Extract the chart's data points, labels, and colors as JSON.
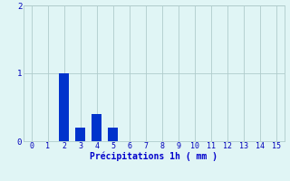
{
  "categories": [
    0,
    1,
    2,
    3,
    4,
    5,
    6,
    7,
    8,
    9,
    10,
    11,
    12,
    13,
    14,
    15
  ],
  "values": [
    0,
    0,
    1.0,
    0.2,
    0.4,
    0.2,
    0,
    0,
    0,
    0,
    0,
    0,
    0,
    0,
    0,
    0
  ],
  "bar_color": "#0033cc",
  "background_color": "#e0f5f5",
  "grid_color": "#b0cccc",
  "xlabel": "Précipitations 1h ( mm )",
  "xlabel_color": "#0000cc",
  "tick_color": "#0000bb",
  "ylim": [
    0,
    2
  ],
  "yticks": [
    0,
    1,
    2
  ],
  "xlim": [
    -0.5,
    15.5
  ],
  "bar_width": 0.6,
  "tick_fontsize": 6.0,
  "xlabel_fontsize": 7.0
}
